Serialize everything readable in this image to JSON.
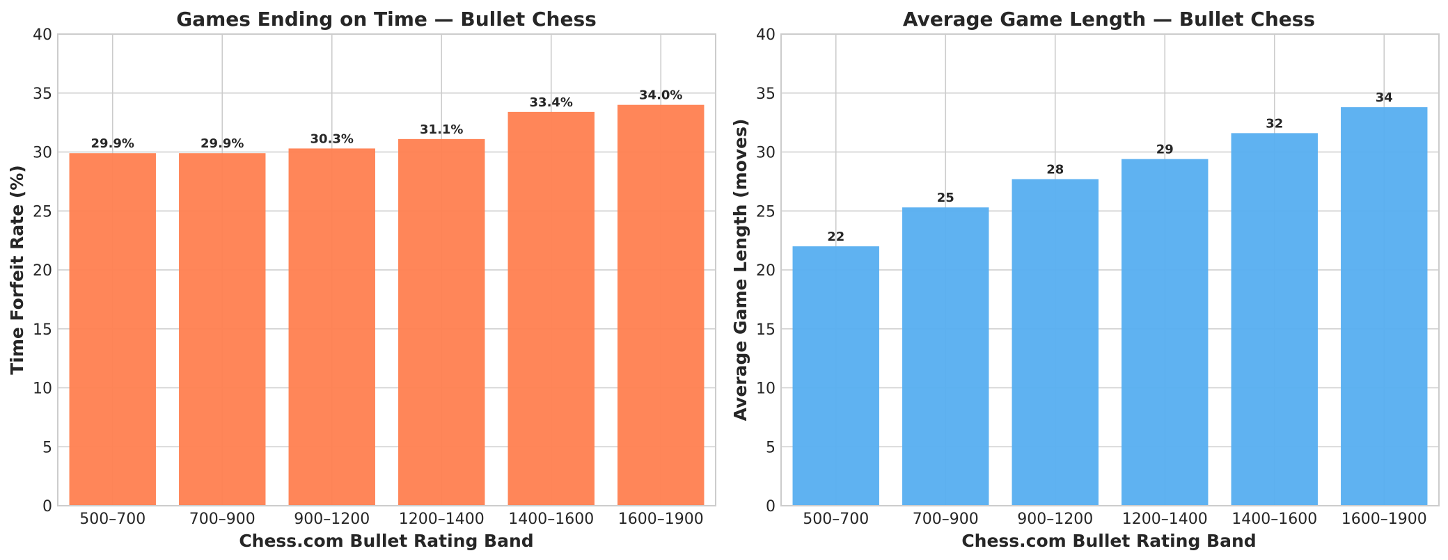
{
  "chart_data": [
    {
      "type": "bar",
      "title": "Games Ending on Time — Bullet Chess",
      "xlabel": "Chess.com Bullet Rating Band",
      "ylabel": "Time Forfeit Rate (%)",
      "categories": [
        "500–700",
        "700–900",
        "900–1200",
        "1200–1400",
        "1400–1600",
        "1600–1900"
      ],
      "values": [
        29.9,
        29.9,
        30.3,
        31.1,
        33.4,
        34.0
      ],
      "value_labels": [
        "29.9%",
        "29.9%",
        "30.3%",
        "31.1%",
        "33.4%",
        "34.0%"
      ],
      "ylim": [
        0,
        40
      ],
      "yticks": [
        0,
        5,
        10,
        15,
        20,
        25,
        30,
        35,
        40
      ],
      "color": "#ff7f50",
      "grid": true
    },
    {
      "type": "bar",
      "title": "Average Game Length — Bullet Chess",
      "xlabel": "Chess.com Bullet Rating Band",
      "ylabel": "Average Game Length (moves)",
      "categories": [
        "500–700",
        "700–900",
        "900–1200",
        "1200–1400",
        "1400–1600",
        "1600–1900"
      ],
      "values": [
        22.0,
        25.3,
        27.7,
        29.4,
        31.6,
        33.8
      ],
      "value_labels": [
        "22",
        "25",
        "28",
        "29",
        "32",
        "34"
      ],
      "ylim": [
        0,
        40
      ],
      "yticks": [
        0,
        5,
        10,
        15,
        20,
        25,
        30,
        35,
        40
      ],
      "color": "#56aef0",
      "grid": true
    }
  ]
}
